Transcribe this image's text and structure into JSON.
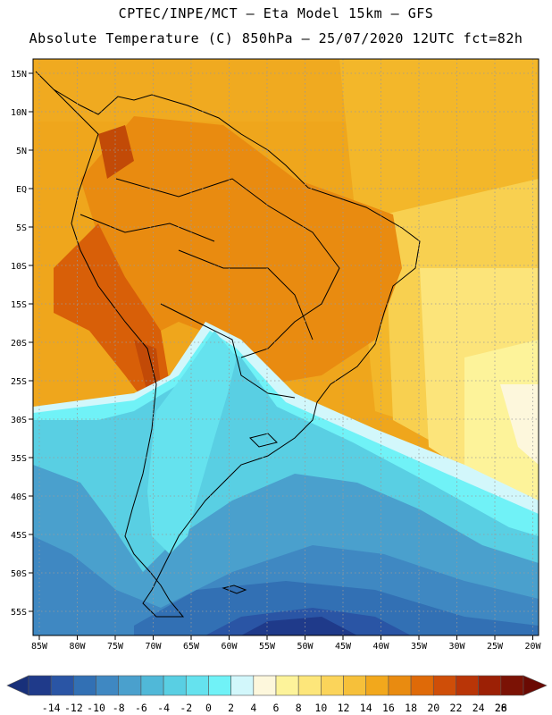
{
  "header": {
    "line1": "CPTEC/INPE/MCT –  Eta Model 15km – GFS",
    "line2": "Absolute Temperature (C) 850hPa – 25/07/2020 12UTC fct=82h"
  },
  "map": {
    "region": "South America",
    "lon_ticks": [
      "85W",
      "80W",
      "75W",
      "70W",
      "65W",
      "60W",
      "55W",
      "50W",
      "45W",
      "40W",
      "35W",
      "30W",
      "25W",
      "20W"
    ],
    "lat_ticks": [
      "15N",
      "10N",
      "5N",
      "EQ",
      "5S",
      "10S",
      "15S",
      "20S",
      "25S",
      "30S",
      "35S",
      "40S",
      "45S",
      "50S",
      "55S"
    ]
  },
  "colorbar": {
    "labels": [
      "-14",
      "-12",
      "-10",
      "-8",
      "-6",
      "-4",
      "-2",
      "0",
      "2",
      "4",
      "6",
      "8",
      "10",
      "12",
      "14",
      "16",
      "18",
      "20",
      "22",
      "24",
      "26",
      "28"
    ],
    "colors": [
      "#1f3a8a",
      "#2a55a5",
      "#3270b4",
      "#3f88c2",
      "#4aa0cd",
      "#50b8d8",
      "#59cfe3",
      "#65e2ee",
      "#70f2f7",
      "#d2f7fb",
      "#fdf7dc",
      "#fdf39a",
      "#fde67a",
      "#fbd45a",
      "#f6c03a",
      "#f2a81c",
      "#e98b10",
      "#df6a08",
      "#cf4e08",
      "#b93507",
      "#9c2005",
      "#7b1205"
    ],
    "under_color": "#18307a",
    "over_color": "#6a0a03"
  }
}
